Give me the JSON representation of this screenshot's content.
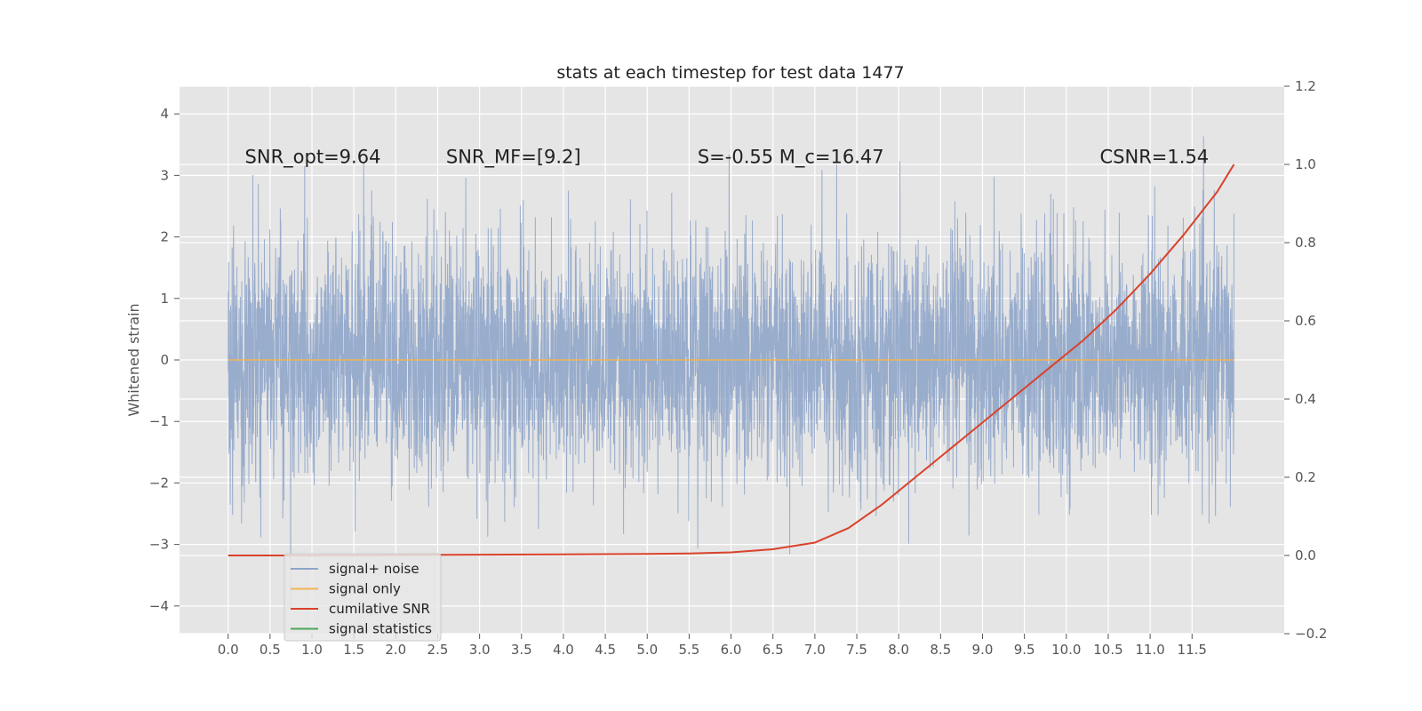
{
  "chart_data": {
    "type": "line",
    "title": "stats at each timestep for test data 1477",
    "ylabel": "Whitened strain",
    "xlim": [
      -0.58,
      12.6
    ],
    "ylim": [
      -4.45,
      4.45
    ],
    "y2lim": [
      -0.2,
      1.2
    ],
    "x_ticks": [
      0.0,
      0.5,
      1.0,
      1.5,
      2.0,
      2.5,
      3.0,
      3.5,
      4.0,
      4.5,
      5.0,
      5.5,
      6.0,
      6.5,
      7.0,
      7.5,
      8.0,
      8.5,
      9.0,
      9.5,
      10.0,
      10.5,
      11.0,
      11.5
    ],
    "x_tick_labels": [
      "0.0",
      "0.5",
      "1.0",
      "1.5",
      "2.0",
      "2.5",
      "3.0",
      "3.5",
      "4.0",
      "4.5",
      "5.0",
      "5.5",
      "6.0",
      "6.5",
      "7.0",
      "7.5",
      "8.0",
      "8.5",
      "9.0",
      "9.5",
      "10.0",
      "10.5",
      "11.0",
      "11.5"
    ],
    "y_ticks": [
      -4,
      -3,
      -2,
      -1,
      0,
      1,
      2,
      3,
      4
    ],
    "y_tick_labels": [
      "−4",
      "−3",
      "−2",
      "−1",
      "0",
      "1",
      "2",
      "3",
      "4"
    ],
    "y2_ticks": [
      -0.2,
      0.0,
      0.2,
      0.4,
      0.6,
      0.8,
      1.0,
      1.2
    ],
    "y2_tick_labels": [
      "−0.2",
      "0.0",
      "0.2",
      "0.4",
      "0.6",
      "0.8",
      "1.0",
      "1.2"
    ],
    "grid": true,
    "legend_position": "lower-left",
    "series": [
      {
        "name": "signal+ noise",
        "color": "#8fa5c9",
        "noise_std": 0.95,
        "x_range": [
          0.0,
          12.0
        ]
      },
      {
        "name": "signal only",
        "color": "#f0b555",
        "x_range": [
          0.0,
          12.0
        ],
        "value": 0.0
      },
      {
        "name": "cumilative SNR",
        "color": "#d9422b",
        "axis": "right",
        "x": [
          0.0,
          1.0,
          2.0,
          3.0,
          4.0,
          5.0,
          5.5,
          6.0,
          6.5,
          7.0,
          7.4,
          7.8,
          8.2,
          8.6,
          9.0,
          9.4,
          9.8,
          10.2,
          10.6,
          11.0,
          11.4,
          11.8,
          12.0
        ],
        "y": [
          0.0,
          0.0,
          0.001,
          0.002,
          0.003,
          0.004,
          0.005,
          0.008,
          0.016,
          0.033,
          0.07,
          0.13,
          0.2,
          0.27,
          0.34,
          0.41,
          0.48,
          0.55,
          0.63,
          0.72,
          0.82,
          0.93,
          1.0
        ]
      },
      {
        "name": "signal statistics",
        "color": "#4ca65a"
      }
    ],
    "annotations": [
      {
        "text": "SNR_opt=9.64",
        "x": 0.2,
        "y": 3.3
      },
      {
        "text": "SNR_MF=[9.2]",
        "x": 2.6,
        "y": 3.3
      },
      {
        "text": "S=-0.55  M_c=16.47",
        "x": 5.6,
        "y": 3.3
      },
      {
        "text": "CSNR=1.54",
        "x": 10.4,
        "y": 3.3
      }
    ]
  }
}
